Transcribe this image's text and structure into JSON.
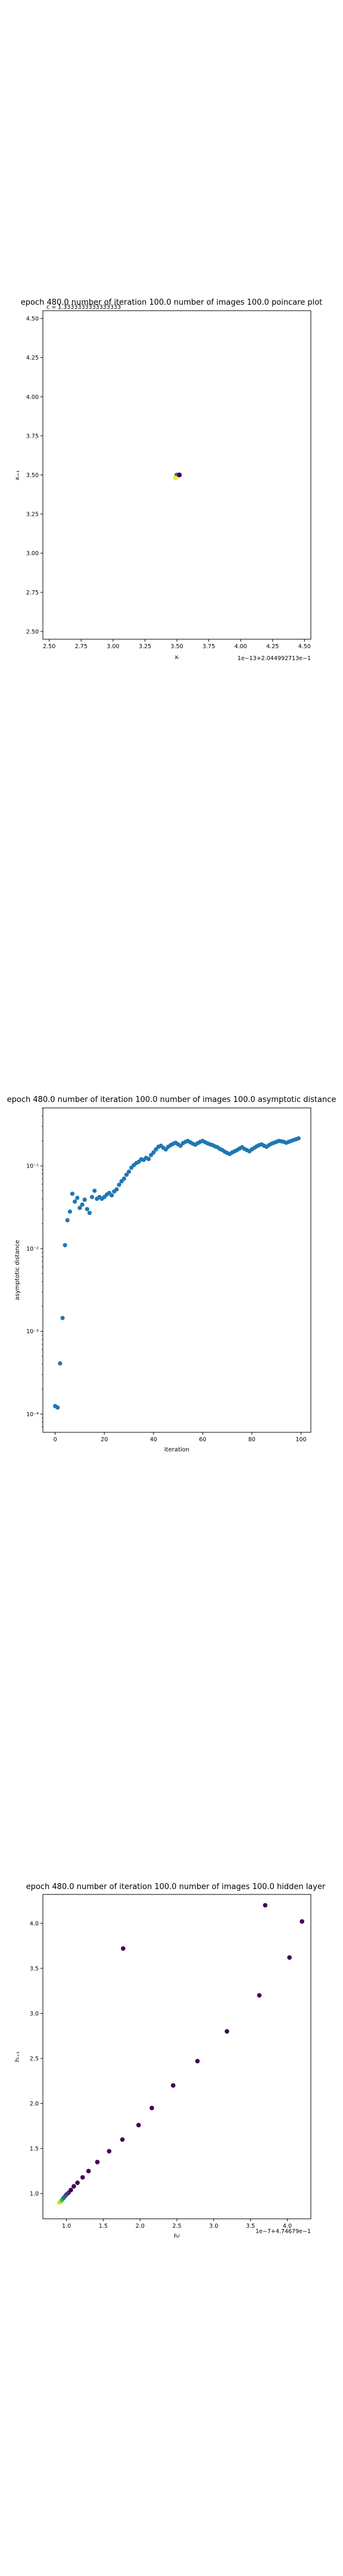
{
  "chart_data": [
    {
      "type": "scatter",
      "title": "epoch 480.0 number of iteration 100.0 number of images 100.0 poincare plot",
      "overlay_text": "c = 1.3333333333333333",
      "xlabel": "xᵢ",
      "ylabel": "xᵢ₊₁",
      "xlim": [
        2.45,
        4.55
      ],
      "ylim": [
        2.45,
        4.55
      ],
      "xticks": [
        "2.50",
        "2.75",
        "3.00",
        "3.25",
        "3.50",
        "3.75",
        "4.00",
        "4.25",
        "4.50"
      ],
      "yticks": [
        "2.50",
        "2.75",
        "3.00",
        "3.25",
        "3.50",
        "3.75",
        "4.00",
        "4.25",
        "4.50"
      ],
      "x_offset_text": "1e−13+2.044992713e−1",
      "y_offset_text": "1e−13+2.044992713e−1",
      "grid": false,
      "points": [
        {
          "x": 3.5,
          "y": 3.5,
          "color": "#26828e"
        },
        {
          "x": 3.52,
          "y": 3.5,
          "color": "#440154"
        },
        {
          "x": 3.49,
          "y": 3.48,
          "color": "#fde725"
        }
      ]
    },
    {
      "type": "scatter",
      "title": "epoch 480.0 number of iteration 100.0  number of images 100.0 asymptotic distance",
      "xlabel": "iteration",
      "ylabel": "asymptotic distance",
      "xlim": [
        -5,
        104
      ],
      "ylim_log10": [
        -4.22,
        -0.3
      ],
      "yscale": "log",
      "xticks": [
        "0",
        "20",
        "40",
        "60",
        "80",
        "100"
      ],
      "yticks": [
        "10⁻⁴",
        "10⁻³",
        "10⁻²",
        "10⁻¹"
      ],
      "grid": false,
      "color": "#1f77b4",
      "x": [
        0,
        1,
        2,
        3,
        4,
        5,
        6,
        7,
        8,
        9,
        10,
        11,
        12,
        13,
        14,
        15,
        16,
        17,
        18,
        19,
        20,
        21,
        22,
        23,
        24,
        25,
        26,
        27,
        28,
        29,
        30,
        31,
        32,
        33,
        34,
        35,
        36,
        37,
        38,
        39,
        40,
        41,
        42,
        43,
        44,
        45,
        46,
        47,
        48,
        49,
        50,
        51,
        52,
        53,
        54,
        55,
        56,
        57,
        58,
        59,
        60,
        61,
        62,
        63,
        64,
        65,
        66,
        67,
        68,
        69,
        70,
        71,
        72,
        73,
        74,
        75,
        76,
        77,
        78,
        79,
        80,
        81,
        82,
        83,
        84,
        85,
        86,
        87,
        88,
        89,
        90,
        91,
        92,
        93,
        94,
        95,
        96,
        97,
        98,
        99
      ],
      "y": [
        0.000125,
        0.00012,
        0.00041,
        0.00145,
        0.011,
        0.022,
        0.028,
        0.046,
        0.037,
        0.041,
        0.031,
        0.034,
        0.039,
        0.03,
        0.027,
        0.042,
        0.05,
        0.04,
        0.042,
        0.04,
        0.042,
        0.045,
        0.047,
        0.044,
        0.049,
        0.052,
        0.059,
        0.065,
        0.07,
        0.078,
        0.085,
        0.095,
        0.102,
        0.108,
        0.112,
        0.12,
        0.118,
        0.125,
        0.121,
        0.135,
        0.145,
        0.158,
        0.17,
        0.175,
        0.165,
        0.158,
        0.17,
        0.178,
        0.185,
        0.19,
        0.182,
        0.175,
        0.188,
        0.195,
        0.2,
        0.192,
        0.185,
        0.18,
        0.188,
        0.195,
        0.2,
        0.193,
        0.187,
        0.182,
        0.178,
        0.172,
        0.168,
        0.16,
        0.155,
        0.148,
        0.143,
        0.139,
        0.145,
        0.15,
        0.155,
        0.162,
        0.168,
        0.16,
        0.155,
        0.15,
        0.158,
        0.165,
        0.172,
        0.178,
        0.182,
        0.175,
        0.17,
        0.178,
        0.185,
        0.19,
        0.195,
        0.2,
        0.198,
        0.195,
        0.19,
        0.195,
        0.2,
        0.205,
        0.21,
        0.215
      ]
    },
    {
      "type": "scatter",
      "title": "epoch 480.0 number of iteration 100.0  number of images 100.0 hidden layer",
      "xlabel": "hᵢʲ",
      "ylabel": "hᵢ₊₁",
      "xlim": [
        0.68,
        4.32
      ],
      "ylim": [
        0.72,
        4.32
      ],
      "xticks": [
        "1.0",
        "1.5",
        "2.0",
        "2.5",
        "3.0",
        "3.5",
        "4.0"
      ],
      "yticks": [
        "1.0",
        "1.5",
        "2.0",
        "2.5",
        "3.0",
        "3.5",
        "4.0"
      ],
      "x_offset_text": "1e−7+4.74679e−1",
      "y_offset_text": "1e−7+4.74679e−1",
      "grid": false,
      "points": [
        {
          "x": 0.9,
          "y": 0.9,
          "color": "#fde725"
        },
        {
          "x": 0.92,
          "y": 0.91,
          "color": "#b5de2b"
        },
        {
          "x": 0.94,
          "y": 0.93,
          "color": "#35b779"
        },
        {
          "x": 0.96,
          "y": 0.95,
          "color": "#26828e"
        },
        {
          "x": 0.98,
          "y": 0.97,
          "color": "#31688e"
        },
        {
          "x": 1.0,
          "y": 0.99,
          "color": "#3e4989"
        },
        {
          "x": 1.03,
          "y": 1.01,
          "color": "#482878"
        },
        {
          "x": 1.06,
          "y": 1.04,
          "color": "#440154"
        },
        {
          "x": 1.1,
          "y": 1.08,
          "color": "#440154"
        },
        {
          "x": 1.15,
          "y": 1.12,
          "color": "#440154"
        },
        {
          "x": 1.22,
          "y": 1.18,
          "color": "#440154"
        },
        {
          "x": 1.3,
          "y": 1.25,
          "color": "#440154"
        },
        {
          "x": 1.42,
          "y": 1.35,
          "color": "#440154"
        },
        {
          "x": 1.58,
          "y": 1.47,
          "color": "#440154"
        },
        {
          "x": 1.76,
          "y": 1.6,
          "color": "#440154"
        },
        {
          "x": 1.98,
          "y": 1.76,
          "color": "#440154"
        },
        {
          "x": 2.16,
          "y": 1.95,
          "color": "#440154"
        },
        {
          "x": 2.45,
          "y": 2.2,
          "color": "#440154"
        },
        {
          "x": 2.78,
          "y": 2.47,
          "color": "#440154"
        },
        {
          "x": 3.18,
          "y": 2.8,
          "color": "#440154"
        },
        {
          "x": 3.62,
          "y": 3.2,
          "color": "#440154"
        },
        {
          "x": 4.2,
          "y": 4.02,
          "color": "#440154"
        },
        {
          "x": 4.03,
          "y": 3.62,
          "color": "#440154"
        },
        {
          "x": 3.7,
          "y": 4.2,
          "color": "#440154"
        },
        {
          "x": 1.77,
          "y": 3.72,
          "color": "#440154"
        }
      ]
    }
  ]
}
